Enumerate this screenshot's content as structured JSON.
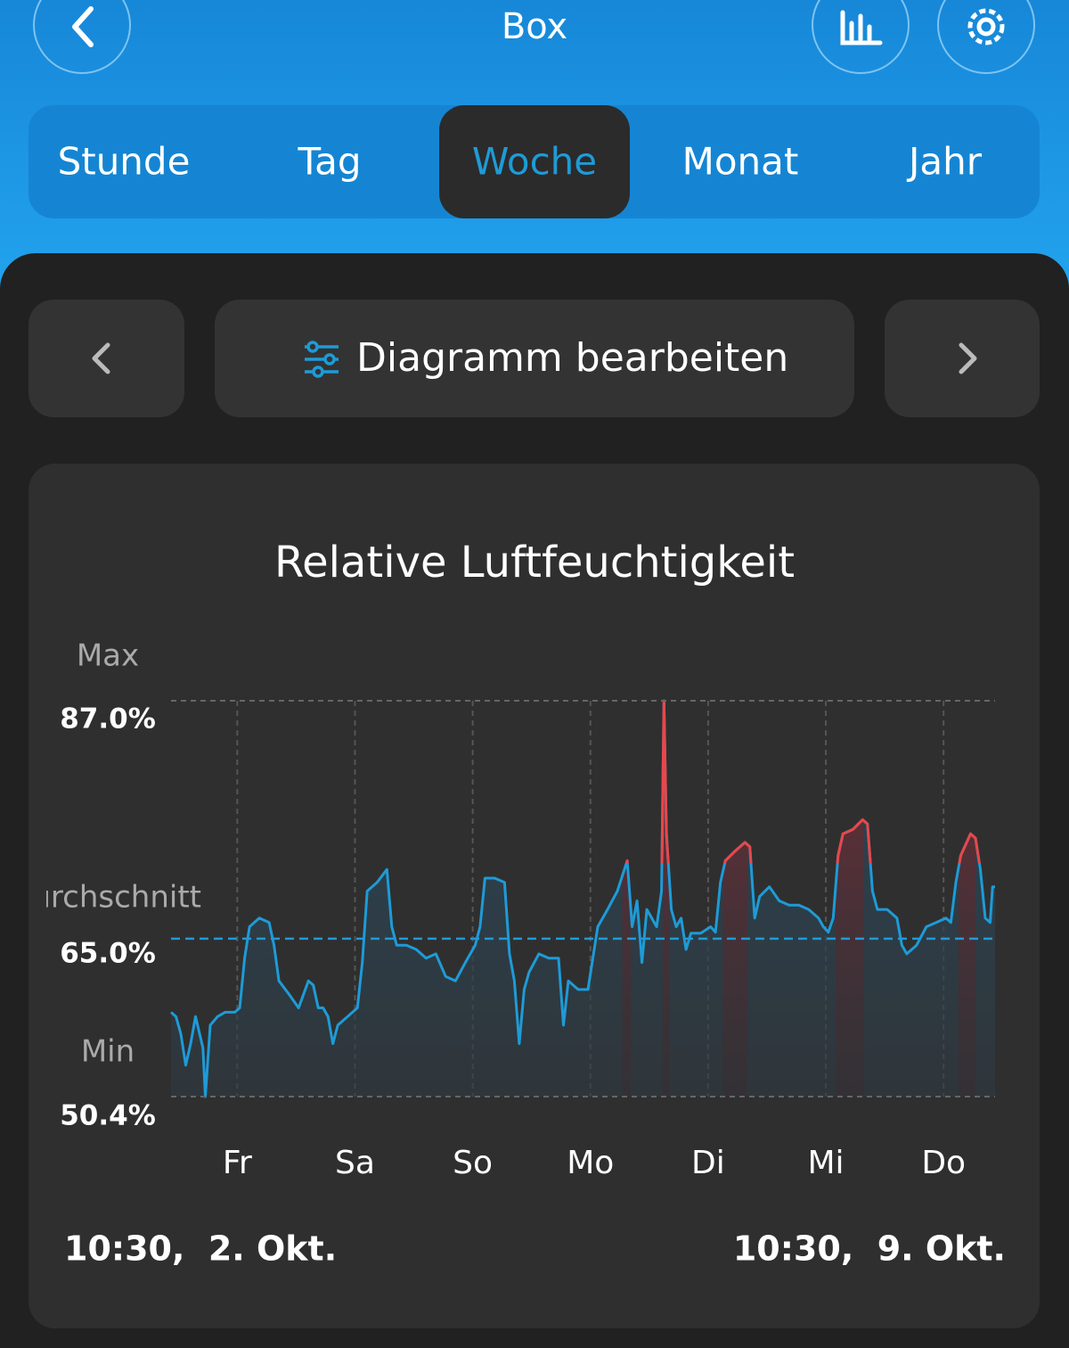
{
  "header": {
    "title": "Box"
  },
  "tabs": [
    "Stunde",
    "Tag",
    "Woche",
    "Monat",
    "Jahr"
  ],
  "selected_tab": 2,
  "toolbar": {
    "edit_button": "Diagramm bearbeiten"
  },
  "chart_data": {
    "type": "line",
    "title": "Relative Luftfeuchtigkeit",
    "x": [
      0,
      1,
      2,
      3,
      4,
      5,
      6.5,
      7,
      8,
      9.5,
      11,
      13,
      14,
      15,
      16,
      18,
      20,
      21,
      22,
      24,
      26,
      28,
      29,
      30,
      31,
      32,
      33,
      34,
      36,
      38,
      39,
      40,
      42,
      44,
      45,
      46,
      48,
      50,
      52,
      54,
      56,
      58,
      60,
      62,
      63,
      64,
      66,
      68,
      69,
      70,
      71,
      72,
      73,
      75,
      77,
      79,
      80,
      81,
      83,
      85,
      87,
      89,
      91,
      93,
      94,
      95,
      96,
      97,
      98,
      99,
      100,
      100.5,
      101,
      102,
      103,
      104,
      105,
      106,
      108,
      110,
      111,
      112,
      113,
      115,
      117,
      118,
      119,
      120,
      122,
      124,
      126,
      128,
      130,
      132,
      133,
      134,
      135,
      136,
      137,
      139,
      141,
      142,
      143,
      144,
      146,
      148,
      149,
      150,
      152,
      154,
      156,
      158,
      159,
      160,
      161,
      163,
      164,
      165,
      166,
      167,
      167.5,
      168
    ],
    "values": [
      58.2,
      57.8,
      56.2,
      53.3,
      55.3,
      57.8,
      54.9,
      50.4,
      57.0,
      57.8,
      58.2,
      58.2,
      58.6,
      63.2,
      66.1,
      66.9,
      66.5,
      64.4,
      61.1,
      59.9,
      58.6,
      61.1,
      60.7,
      58.6,
      58.6,
      57.8,
      55.3,
      57.0,
      57.8,
      58.6,
      62.8,
      69.4,
      70.2,
      71.4,
      66.1,
      64.4,
      64.4,
      64.0,
      63.2,
      63.6,
      61.5,
      61.1,
      62.8,
      64.4,
      66.1,
      70.6,
      70.6,
      70.2,
      63.6,
      61.1,
      55.3,
      60.3,
      61.9,
      63.6,
      63.2,
      63.2,
      57.0,
      61.1,
      60.3,
      60.3,
      66.1,
      67.7,
      69.4,
      72.2,
      66.1,
      68.5,
      62.8,
      67.7,
      66.9,
      66.1,
      69.4,
      87.0,
      74.7,
      67.7,
      66.1,
      66.9,
      64.0,
      65.5,
      65.5,
      66.1,
      65.6,
      70.2,
      72.2,
      73.1,
      73.9,
      73.5,
      66.9,
      68.9,
      69.8,
      68.5,
      68.1,
      68.1,
      67.7,
      66.9,
      66.1,
      65.6,
      66.9,
      72.7,
      74.7,
      75.1,
      76.0,
      75.6,
      69.4,
      67.7,
      67.7,
      66.9,
      64.4,
      63.6,
      64.4,
      66.1,
      66.5,
      66.9,
      66.5,
      70.2,
      72.7,
      74.7,
      74.3,
      71.4,
      66.9,
      66.5,
      69.8,
      69.8
    ],
    "color": "#1e9bd7",
    "threshold": 72,
    "threshold_color": "#e8474b",
    "xlim": [
      0,
      168
    ],
    "xticks": [
      {
        "value": 13.5,
        "label": "Fr"
      },
      {
        "value": 37.5,
        "label": "Sa"
      },
      {
        "value": 61.5,
        "label": "So"
      },
      {
        "value": 85.5,
        "label": "Mo"
      },
      {
        "value": 109.5,
        "label": "Di"
      },
      {
        "value": 133.5,
        "label": "Mi"
      },
      {
        "value": 157.5,
        "label": "Do"
      }
    ],
    "ylim": [
      50.4,
      87.0
    ],
    "reference_lines": [
      {
        "name": "Max",
        "value": 87.0,
        "label": "87.0%"
      },
      {
        "name": "Durchschnitt",
        "value": 65.0,
        "label": "65.0%"
      },
      {
        "name": "Min",
        "value": 50.4,
        "label": "50.4%"
      }
    ],
    "start_label": "10:30,  2. Okt.",
    "end_label": "10:30,  9. Okt."
  }
}
